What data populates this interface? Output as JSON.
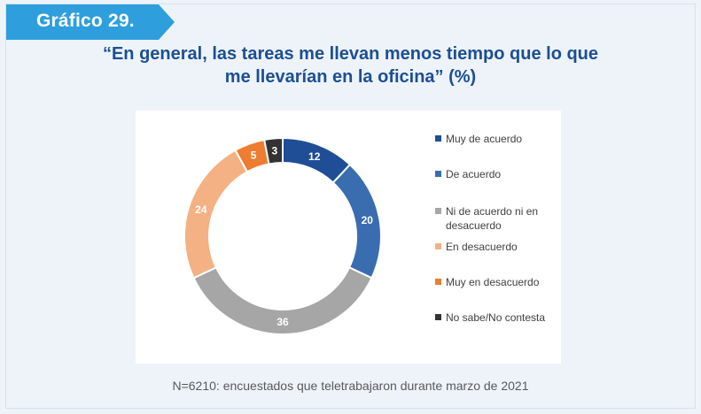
{
  "header": {
    "badge": "Gráfico 29.",
    "title_line1": "“En general, las tareas me llevan menos tiempo que lo que",
    "title_line2": "me llevarían en la oficina” (%)"
  },
  "chart_data": {
    "type": "pie",
    "variant": "donut",
    "title": "“En general, las tareas me llevan menos tiempo que lo que me llevarían en la oficina” (%)",
    "categories": [
      "Muy de acuerdo",
      "De acuerdo",
      "Ni de acuerdo ni en desacuerdo",
      "En desacuerdo",
      "Muy en desacuerdo",
      "No sabe/No contesta"
    ],
    "legend_lines": [
      [
        "Muy de acuerdo"
      ],
      [
        "De acuerdo"
      ],
      [
        "Ni de acuerdo ni en",
        "desacuerdo"
      ],
      [
        "En desacuerdo"
      ],
      [
        "Muy en desacuerdo"
      ],
      [
        "No sabe/No contesta"
      ]
    ],
    "values": [
      12,
      20,
      36,
      24,
      5,
      3
    ],
    "colors": [
      "#1f4e96",
      "#3a6db0",
      "#a6a6a6",
      "#f4b183",
      "#ed7d31",
      "#333333"
    ],
    "legend_position": "right"
  },
  "footnote": "N=6210: encuestados que teletrabajaron durante marzo de 2021"
}
